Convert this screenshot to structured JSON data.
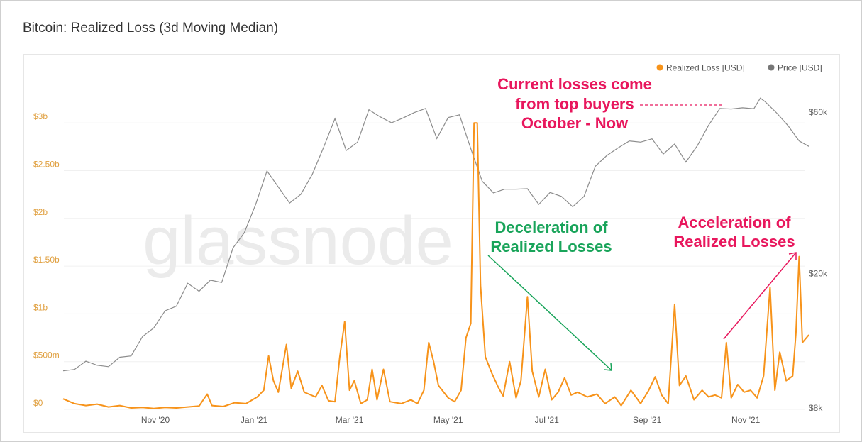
{
  "title": "Bitcoin: Realized Loss (3d Moving Median)",
  "watermark": "glassnode",
  "colors": {
    "loss": "#f7931a",
    "price": "#8c8c8c",
    "left_axis": "#e0a040",
    "right_axis": "#666666",
    "red_annotation": "#e8175d",
    "green_annotation": "#19a45a"
  },
  "chart_data": {
    "type": "line",
    "title": "Bitcoin: Realized Loss (3d Moving Median)",
    "legend": {
      "placement": "top-right",
      "entries": [
        "Realized Loss [USD]",
        "Price [USD]"
      ]
    },
    "x_ticks": [
      {
        "date": "2020-11-01",
        "label": "Nov '20"
      },
      {
        "date": "2021-01-01",
        "label": "Jan '21"
      },
      {
        "date": "2021-03-01",
        "label": "Mar '21"
      },
      {
        "date": "2021-05-01",
        "label": "May '21"
      },
      {
        "date": "2021-07-01",
        "label": "Jul '21"
      },
      {
        "date": "2021-09-01",
        "label": "Sep '21"
      },
      {
        "date": "2021-11-01",
        "label": "Nov '21"
      }
    ],
    "xlim": [
      "2020-09-05",
      "2021-12-10"
    ],
    "y_left": {
      "scale": "linear",
      "ylim": [
        0,
        3000000000
      ],
      "ticks": [
        {
          "value": 0,
          "label": "$0"
        },
        {
          "value": 500000000,
          "label": "$500m"
        },
        {
          "value": 1000000000,
          "label": "$1b"
        },
        {
          "value": 1500000000,
          "label": "$1.50b"
        },
        {
          "value": 2000000000,
          "label": "$2b"
        },
        {
          "value": 2500000000,
          "label": "$2.50b"
        },
        {
          "value": 3000000000,
          "label": "$3b"
        }
      ]
    },
    "y_right": {
      "scale": "log",
      "ylim": [
        8000,
        60000
      ],
      "ticks": [
        {
          "value": 8000,
          "label": "$8k"
        },
        {
          "value": 20000,
          "label": "$20k"
        },
        {
          "value": 60000,
          "label": "$60k"
        }
      ]
    },
    "grid": true,
    "series": [
      {
        "name": "Realized Loss [USD]",
        "axis": "left",
        "unit": "USD millions",
        "points": [
          [
            "2020-09-05",
            110
          ],
          [
            "2020-09-12",
            60
          ],
          [
            "2020-09-19",
            40
          ],
          [
            "2020-09-26",
            55
          ],
          [
            "2020-10-03",
            25
          ],
          [
            "2020-10-10",
            40
          ],
          [
            "2020-10-17",
            15
          ],
          [
            "2020-10-24",
            20
          ],
          [
            "2020-10-31",
            10
          ],
          [
            "2020-11-07",
            20
          ],
          [
            "2020-11-14",
            15
          ],
          [
            "2020-11-21",
            25
          ],
          [
            "2020-11-28",
            35
          ],
          [
            "2020-12-03",
            160
          ],
          [
            "2020-12-06",
            40
          ],
          [
            "2020-12-13",
            30
          ],
          [
            "2020-12-20",
            70
          ],
          [
            "2020-12-27",
            60
          ],
          [
            "2021-01-03",
            130
          ],
          [
            "2021-01-07",
            200
          ],
          [
            "2021-01-10",
            560
          ],
          [
            "2021-01-13",
            300
          ],
          [
            "2021-01-16",
            180
          ],
          [
            "2021-01-21",
            680
          ],
          [
            "2021-01-24",
            220
          ],
          [
            "2021-01-28",
            400
          ],
          [
            "2021-02-01",
            180
          ],
          [
            "2021-02-08",
            130
          ],
          [
            "2021-02-12",
            250
          ],
          [
            "2021-02-16",
            90
          ],
          [
            "2021-02-20",
            80
          ],
          [
            "2021-02-23",
            550
          ],
          [
            "2021-02-26",
            920
          ],
          [
            "2021-03-01",
            200
          ],
          [
            "2021-03-04",
            300
          ],
          [
            "2021-03-08",
            60
          ],
          [
            "2021-03-12",
            100
          ],
          [
            "2021-03-15",
            420
          ],
          [
            "2021-03-18",
            100
          ],
          [
            "2021-03-22",
            420
          ],
          [
            "2021-03-26",
            80
          ],
          [
            "2021-04-02",
            60
          ],
          [
            "2021-04-08",
            100
          ],
          [
            "2021-04-12",
            60
          ],
          [
            "2021-04-16",
            200
          ],
          [
            "2021-04-19",
            700
          ],
          [
            "2021-04-22",
            500
          ],
          [
            "2021-04-25",
            250
          ],
          [
            "2021-05-01",
            120
          ],
          [
            "2021-05-05",
            80
          ],
          [
            "2021-05-09",
            200
          ],
          [
            "2021-05-12",
            750
          ],
          [
            "2021-05-15",
            900
          ],
          [
            "2021-05-17",
            3000
          ],
          [
            "2021-05-19",
            3000
          ],
          [
            "2021-05-21",
            1300
          ],
          [
            "2021-05-24",
            550
          ],
          [
            "2021-05-28",
            380
          ],
          [
            "2021-06-01",
            230
          ],
          [
            "2021-06-04",
            140
          ],
          [
            "2021-06-08",
            500
          ],
          [
            "2021-06-12",
            120
          ],
          [
            "2021-06-15",
            300
          ],
          [
            "2021-06-19",
            1180
          ],
          [
            "2021-06-22",
            400
          ],
          [
            "2021-06-26",
            130
          ],
          [
            "2021-06-30",
            420
          ],
          [
            "2021-07-04",
            100
          ],
          [
            "2021-07-08",
            180
          ],
          [
            "2021-07-12",
            330
          ],
          [
            "2021-07-16",
            150
          ],
          [
            "2021-07-20",
            180
          ],
          [
            "2021-07-26",
            130
          ],
          [
            "2021-08-01",
            160
          ],
          [
            "2021-08-06",
            60
          ],
          [
            "2021-08-12",
            130
          ],
          [
            "2021-08-16",
            40
          ],
          [
            "2021-08-22",
            200
          ],
          [
            "2021-08-28",
            60
          ],
          [
            "2021-09-02",
            200
          ],
          [
            "2021-09-06",
            340
          ],
          [
            "2021-09-10",
            150
          ],
          [
            "2021-09-14",
            60
          ],
          [
            "2021-09-18",
            1100
          ],
          [
            "2021-09-21",
            250
          ],
          [
            "2021-09-25",
            350
          ],
          [
            "2021-09-30",
            100
          ],
          [
            "2021-10-05",
            200
          ],
          [
            "2021-10-09",
            130
          ],
          [
            "2021-10-13",
            150
          ],
          [
            "2021-10-17",
            120
          ],
          [
            "2021-10-20",
            700
          ],
          [
            "2021-10-23",
            120
          ],
          [
            "2021-10-27",
            260
          ],
          [
            "2021-10-31",
            180
          ],
          [
            "2021-11-04",
            200
          ],
          [
            "2021-11-08",
            120
          ],
          [
            "2021-11-12",
            350
          ],
          [
            "2021-11-16",
            1280
          ],
          [
            "2021-11-19",
            200
          ],
          [
            "2021-11-22",
            600
          ],
          [
            "2021-11-26",
            300
          ],
          [
            "2021-11-30",
            350
          ],
          [
            "2021-12-02",
            800
          ],
          [
            "2021-12-04",
            1600
          ],
          [
            "2021-12-06",
            700
          ],
          [
            "2021-12-10",
            780
          ]
        ]
      },
      {
        "name": "Price [USD]",
        "axis": "right",
        "unit": "USD",
        "points": [
          [
            "2020-09-05",
            10300
          ],
          [
            "2020-09-12",
            10400
          ],
          [
            "2020-09-19",
            11000
          ],
          [
            "2020-09-26",
            10700
          ],
          [
            "2020-10-03",
            10600
          ],
          [
            "2020-10-10",
            11300
          ],
          [
            "2020-10-17",
            11400
          ],
          [
            "2020-10-24",
            13000
          ],
          [
            "2020-10-31",
            13800
          ],
          [
            "2020-11-07",
            15500
          ],
          [
            "2020-11-14",
            16000
          ],
          [
            "2020-11-21",
            18700
          ],
          [
            "2020-11-28",
            17700
          ],
          [
            "2020-12-05",
            19100
          ],
          [
            "2020-12-12",
            18800
          ],
          [
            "2020-12-19",
            23800
          ],
          [
            "2020-12-26",
            26400
          ],
          [
            "2021-01-02",
            32000
          ],
          [
            "2021-01-09",
            40200
          ],
          [
            "2021-01-16",
            36000
          ],
          [
            "2021-01-23",
            32300
          ],
          [
            "2021-01-30",
            34300
          ],
          [
            "2021-02-06",
            39300
          ],
          [
            "2021-02-13",
            47200
          ],
          [
            "2021-02-20",
            57400
          ],
          [
            "2021-02-27",
            46200
          ],
          [
            "2021-03-06",
            48900
          ],
          [
            "2021-03-13",
            61000
          ],
          [
            "2021-03-20",
            58100
          ],
          [
            "2021-03-27",
            55800
          ],
          [
            "2021-04-03",
            57600
          ],
          [
            "2021-04-10",
            59800
          ],
          [
            "2021-04-17",
            61500
          ],
          [
            "2021-04-24",
            50100
          ],
          [
            "2021-05-01",
            57800
          ],
          [
            "2021-05-08",
            58900
          ],
          [
            "2021-05-15",
            46800
          ],
          [
            "2021-05-22",
            37500
          ],
          [
            "2021-05-29",
            34600
          ],
          [
            "2021-06-05",
            35500
          ],
          [
            "2021-06-12",
            35500
          ],
          [
            "2021-06-19",
            35600
          ],
          [
            "2021-06-26",
            32000
          ],
          [
            "2021-07-03",
            34700
          ],
          [
            "2021-07-10",
            33800
          ],
          [
            "2021-07-17",
            31500
          ],
          [
            "2021-07-24",
            33800
          ],
          [
            "2021-07-31",
            41500
          ],
          [
            "2021-08-07",
            44600
          ],
          [
            "2021-08-14",
            47000
          ],
          [
            "2021-08-21",
            49300
          ],
          [
            "2021-08-28",
            48900
          ],
          [
            "2021-09-04",
            50000
          ],
          [
            "2021-09-11",
            45100
          ],
          [
            "2021-09-18",
            48300
          ],
          [
            "2021-09-25",
            42700
          ],
          [
            "2021-10-02",
            47700
          ],
          [
            "2021-10-09",
            54900
          ],
          [
            "2021-10-16",
            61500
          ],
          [
            "2021-10-23",
            61300
          ],
          [
            "2021-10-30",
            61800
          ],
          [
            "2021-11-06",
            61400
          ],
          [
            "2021-11-10",
            66000
          ],
          [
            "2021-11-13",
            64400
          ],
          [
            "2021-11-20",
            59700
          ],
          [
            "2021-11-27",
            54800
          ],
          [
            "2021-12-04",
            49300
          ],
          [
            "2021-12-10",
            47500
          ]
        ]
      }
    ],
    "annotations": {
      "top": [
        "Current losses come",
        "from top buyers",
        "October - Now"
      ],
      "decel": [
        "Deceleration of",
        "Realized Losses"
      ],
      "accel": [
        "Acceleration of",
        "Realized Losses"
      ]
    }
  }
}
